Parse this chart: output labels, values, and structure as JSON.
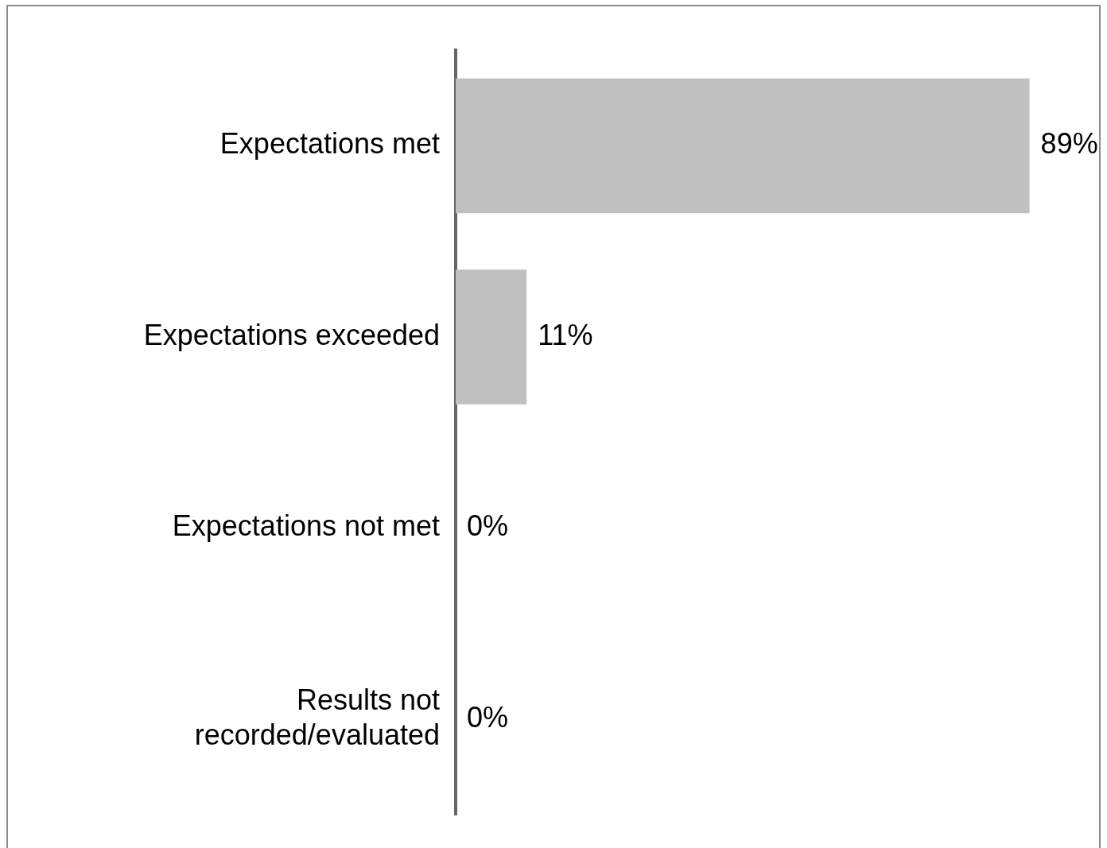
{
  "chart_data": {
    "type": "bar",
    "orientation": "horizontal",
    "categories": [
      "Expectations met",
      "Expectations exceeded",
      "Expectations not met",
      "Results not recorded/evaluated"
    ],
    "values": [
      89,
      11,
      0,
      0
    ],
    "value_labels": [
      "89%",
      "11%",
      "0%",
      "0%"
    ],
    "color": "#c0c0c0"
  }
}
